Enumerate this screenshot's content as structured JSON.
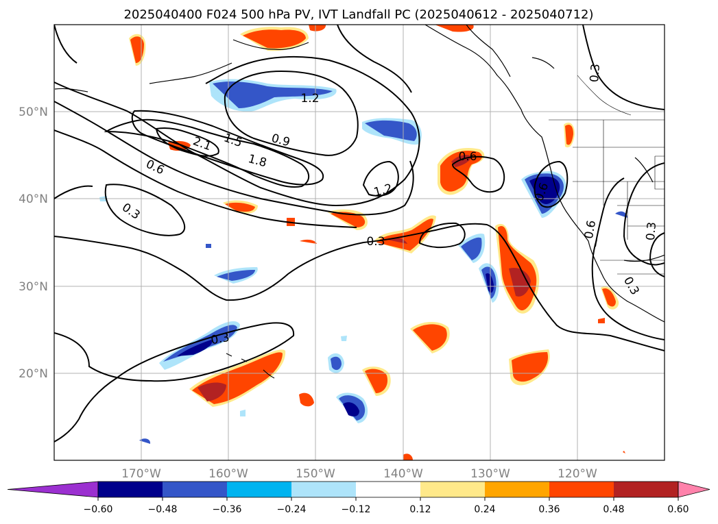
{
  "title": "2025040400 F024 500 hPa PV, IVT Landfall PC (2025040612 - 2025040712)",
  "map": {
    "lon_range": [
      -180,
      -110
    ],
    "lat_range": [
      10,
      60
    ],
    "lon_ticks": [
      "170°W",
      "160°W",
      "150°W",
      "140°W",
      "130°W",
      "120°W"
    ],
    "lat_ticks": [
      "50°N",
      "40°N",
      "30°N",
      "20°N"
    ],
    "gridlines": true
  },
  "contour_labels": [
    "1.2",
    "2.1",
    "1.5",
    "1.8",
    "0.9",
    "0.6",
    "0.3",
    "1.2",
    "0.6",
    "0.3",
    "0.3",
    "0.6",
    "0.3",
    "0.3",
    "0.3",
    "0.6"
  ],
  "colorbar": {
    "orientation": "horizontal",
    "extend": "both",
    "ticks": [
      "−0.60",
      "−0.48",
      "−0.36",
      "−0.24",
      "−0.12",
      "0.12",
      "0.24",
      "0.36",
      "0.48",
      "0.60"
    ],
    "colors": [
      "#9b30d0",
      "#00008b",
      "#3456c8",
      "#00b4f0",
      "#aee4fa",
      "#ffffff",
      "#ffe98a",
      "#ffa500",
      "#ff4500",
      "#b22222",
      "#ff82ab"
    ]
  }
}
